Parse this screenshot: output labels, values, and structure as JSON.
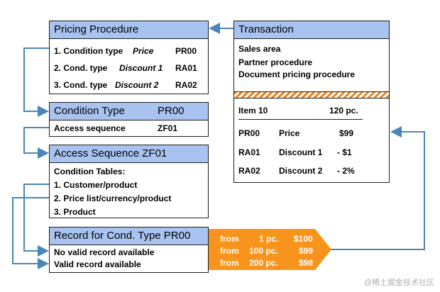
{
  "pricing_procedure": {
    "title": "Pricing Procedure",
    "rows": [
      {
        "prefix": "1. Condition type",
        "name": "Price",
        "code": "PR00"
      },
      {
        "prefix": "2. Cond. type",
        "name": "Discount  1",
        "code": "RA01"
      },
      {
        "prefix": "3. Cond. type",
        "name": "Discount  2",
        "code": "RA02"
      }
    ]
  },
  "condition_type": {
    "title": "Condition Type",
    "code": "PR00",
    "access_label": "Access  sequence",
    "access_value": "ZF01"
  },
  "access_sequence": {
    "title": "Access Sequence  ZF01",
    "tables_label": "Condition Tables:",
    "tables": [
      "1. Customer/product",
      "2. Price list/currency/product",
      "3. Product"
    ]
  },
  "record": {
    "title": "Record for Cond. Type PR00",
    "lines": [
      "No valid record available",
      "Valid record available"
    ]
  },
  "scales": [
    {
      "from": "from",
      "qty": "1 pc.",
      "price": "$100"
    },
    {
      "from": "from",
      "qty": "100 pc.",
      "price": "$99"
    },
    {
      "from": "from",
      "qty": "200 pc.",
      "price": "$98"
    }
  ],
  "transaction": {
    "title": "Transaction",
    "header_lines": [
      "Sales area",
      "Partner procedure",
      "Document  pricing procedure"
    ],
    "item_label": "Item 10",
    "item_qty": "120  pc.",
    "conditions": [
      {
        "code": "PR00",
        "name": "Price",
        "value": "$99"
      },
      {
        "code": "RA01",
        "name": "Discount  1",
        "value": "- $1"
      },
      {
        "code": "RA02",
        "name": "Discount  2",
        "value": "- 2%"
      }
    ]
  },
  "colors": {
    "header_fill": "#a9c3f0",
    "arrow": "#4a86b8",
    "scale_fill": "#f7941d",
    "hatch": "#e8841e"
  },
  "watermark": "@稀土掘金技术社区"
}
